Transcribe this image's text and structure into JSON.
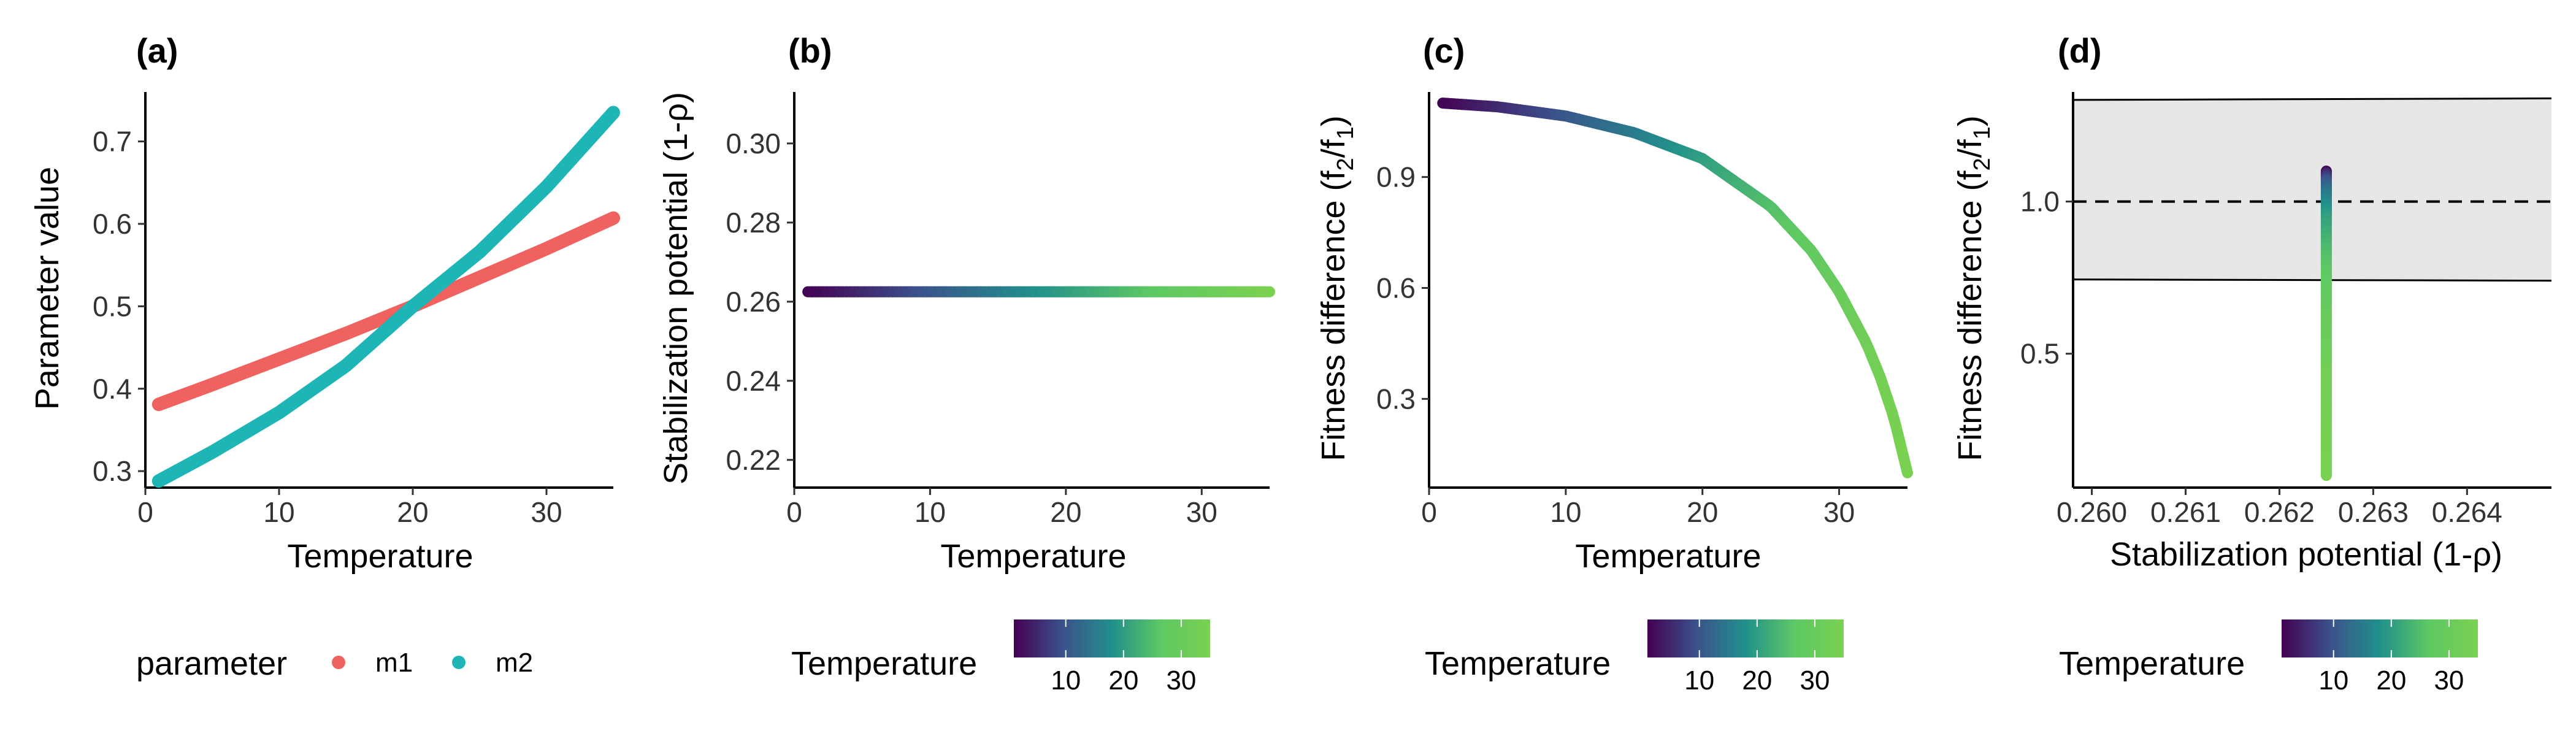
{
  "chart_data": [
    {
      "panel": "(a)",
      "type": "line",
      "xlabel": "Temperature",
      "ylabel": "Parameter value",
      "xlim": [
        0,
        35
      ],
      "ylim": [
        0.28,
        0.76
      ],
      "xticks": [
        0,
        10,
        20,
        30
      ],
      "yticks": [
        0.3,
        0.4,
        0.5,
        0.6,
        0.7
      ],
      "legend": {
        "title": "parameter",
        "position": "bottom"
      },
      "series": [
        {
          "name": "m1",
          "color": "#F0625F",
          "x": [
            1,
            5,
            10,
            15,
            20,
            25,
            30,
            35
          ],
          "y": [
            0.381,
            0.405,
            0.436,
            0.467,
            0.5,
            0.535,
            0.57,
            0.607
          ]
        },
        {
          "name": "m2",
          "color": "#1DB5B5",
          "x": [
            1,
            5,
            10,
            15,
            20,
            25,
            30,
            35
          ],
          "y": [
            0.288,
            0.323,
            0.371,
            0.428,
            0.5,
            0.566,
            0.645,
            0.735
          ]
        }
      ]
    },
    {
      "panel": "(b)",
      "type": "line",
      "xlabel": "Temperature",
      "ylabel": "Stabilization potential (1-ρ)",
      "xlim": [
        0,
        35
      ],
      "ylim": [
        0.213,
        0.313
      ],
      "xticks": [
        0,
        10,
        20,
        30
      ],
      "yticks": [
        0.22,
        0.24,
        0.26,
        0.28,
        0.3
      ],
      "color_by": "Temperature",
      "series": [
        {
          "x": [
            1,
            35
          ],
          "y": [
            0.2625,
            0.2625
          ]
        }
      ]
    },
    {
      "panel": "(c)",
      "type": "line",
      "xlabel": "Temperature",
      "ylabel": "Fitness difference (f2/f1)",
      "xlim": [
        0,
        35
      ],
      "ylim": [
        0.06,
        1.13
      ],
      "xticks": [
        0,
        10,
        20,
        30
      ],
      "yticks": [
        0.3,
        0.6,
        0.9
      ],
      "color_by": "Temperature",
      "series": [
        {
          "x": [
            1,
            5,
            10,
            15,
            20,
            25,
            28,
            30,
            32,
            33,
            34,
            35
          ],
          "y": [
            1.1,
            1.09,
            1.065,
            1.02,
            0.95,
            0.82,
            0.7,
            0.59,
            0.45,
            0.36,
            0.25,
            0.1
          ]
        }
      ]
    },
    {
      "panel": "(d)",
      "type": "scatter",
      "xlabel": "Stabilization potential (1-ρ)",
      "ylabel": "Fitness difference (f2/f1)",
      "xlim": [
        0.2598,
        0.2649
      ],
      "ylim": [
        0.06,
        1.36
      ],
      "xticks": [
        0.26,
        0.261,
        0.262,
        0.263,
        0.264
      ],
      "yticks": [
        0.5,
        1.0
      ],
      "color_by": "Temperature",
      "reference_line": {
        "y": 1.0,
        "style": "dashed"
      },
      "coexistence_band": {
        "x": [
          0.2598,
          0.2649
        ],
        "upper": [
          1.334,
          1.339
        ],
        "lower": [
          0.744,
          0.74
        ]
      },
      "series": [
        {
          "x": [
            0.2625,
            0.2625
          ],
          "y": [
            0.1,
            1.1
          ]
        }
      ]
    }
  ],
  "colorbar": {
    "title": "Temperature",
    "ticks": [
      10,
      20,
      30
    ],
    "range": [
      1,
      35
    ],
    "colors": [
      "#440154",
      "#3B528B",
      "#21908C",
      "#5DC863",
      "#7AD151"
    ]
  },
  "labels": {
    "panel_a": "(a)",
    "panel_b": "(b)",
    "panel_c": "(c)",
    "panel_d": "(d)",
    "x_temperature": "Temperature",
    "y_parameter": "Parameter value",
    "y_stab_main": "Stabilization potential (1-",
    "rho": "ρ",
    "close_paren": ")",
    "fit_main": "Fitness difference (f",
    "sub_2": "2",
    "slash_f": "/f",
    "sub_1": "1",
    "legend_title": "parameter",
    "legend_m1": "m1",
    "legend_m2": "m2",
    "colorbar_title": "Temperature"
  }
}
